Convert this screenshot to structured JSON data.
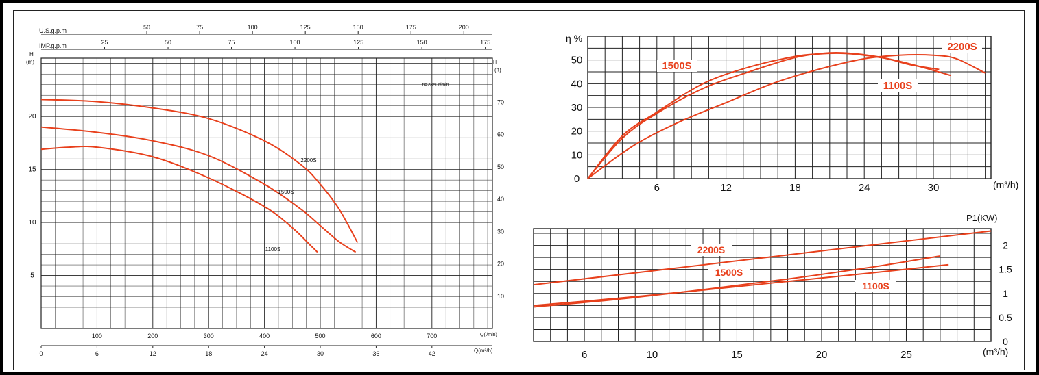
{
  "chart_data": [
    {
      "type": "line",
      "title": "",
      "annotation": "n=2850r/min",
      "top_axes": [
        {
          "label": "U.S.g.p.m",
          "ticks": [
            "50",
            "75",
            "100",
            "125",
            "150",
            "175",
            "200"
          ],
          "values": [
            50,
            75,
            100,
            125,
            150,
            175,
            200
          ]
        },
        {
          "label": "IMP.g.p.m",
          "ticks": [
            "25",
            "50",
            "75",
            "100",
            "125",
            "150",
            "175"
          ],
          "values": [
            25,
            50,
            75,
            100,
            125,
            150,
            175
          ]
        }
      ],
      "bottom_axes": [
        {
          "label": "Q(l/min)",
          "ticks": [
            "100",
            "200",
            "300",
            "400",
            "500",
            "600",
            "700"
          ],
          "values": [
            100,
            200,
            300,
            400,
            500,
            600,
            700
          ]
        },
        {
          "label": "Q(m³/h)",
          "ticks": [
            "0",
            "6",
            "12",
            "18",
            "24",
            "30",
            "36",
            "42"
          ],
          "values": [
            0,
            6,
            12,
            18,
            24,
            30,
            36,
            42
          ]
        }
      ],
      "ylabel_left": "H",
      "ylabel_left_unit": "(m)",
      "ylabel_right": "H",
      "ylabel_right_unit": "(ft)",
      "yticks_left": [
        "5",
        "10",
        "15",
        "20"
      ],
      "yticks_right": [
        "10",
        "20",
        "30",
        "40",
        "50",
        "60",
        "70"
      ],
      "xlim": [
        0,
        48.5
      ],
      "ylim": [
        0,
        25.5
      ],
      "grid": true,
      "series": [
        {
          "name": "2200S",
          "x": [
            0,
            6,
            12,
            18,
            24,
            28,
            30,
            32,
            34
          ],
          "y": [
            21.6,
            21.4,
            20.8,
            19.8,
            17.7,
            15.4,
            13.6,
            11.3,
            8.1
          ]
        },
        {
          "name": "1500S",
          "x": [
            0,
            6,
            12,
            18,
            24,
            28,
            30,
            32,
            33.8
          ],
          "y": [
            19.0,
            18.5,
            17.7,
            16.3,
            13.6,
            11.2,
            9.7,
            8.2,
            7.2
          ]
        },
        {
          "name": "1100S",
          "x": [
            0,
            3,
            6,
            12,
            18,
            24,
            27,
            29,
            29.7
          ],
          "y": [
            16.9,
            17.1,
            17.1,
            16.2,
            14.2,
            11.5,
            9.5,
            7.8,
            7.2
          ]
        }
      ]
    },
    {
      "type": "line",
      "title": "",
      "ylabel": "η %",
      "xlabel": "(m³/h)",
      "xticks": [
        "6",
        "12",
        "18",
        "24",
        "30"
      ],
      "yticks": [
        "0",
        "10",
        "20",
        "30",
        "40",
        "50"
      ],
      "xlim": [
        0,
        35
      ],
      "ylim": [
        0,
        60
      ],
      "grid": true,
      "series": [
        {
          "name": "1500S",
          "x": [
            0,
            3,
            6,
            10,
            14,
            18,
            20,
            22,
            24,
            26,
            28,
            30.5
          ],
          "y": [
            0,
            18,
            28,
            40,
            47,
            51.5,
            52.5,
            52.8,
            52,
            50.5,
            48,
            46
          ]
        },
        {
          "name": "1100S",
          "x": [
            0,
            3,
            6,
            10,
            14,
            18,
            21,
            23,
            25,
            27,
            29,
            31.5
          ],
          "y": [
            0,
            17,
            27.5,
            38,
            45,
            51,
            53,
            52.7,
            51.5,
            49.5,
            47,
            43.5
          ]
        },
        {
          "name": "2200S",
          "x": [
            0,
            4,
            8,
            12,
            16,
            20,
            24,
            27,
            30,
            32,
            34.5
          ],
          "y": [
            0,
            14,
            24,
            32,
            40,
            46,
            50.5,
            52,
            52,
            50.5,
            44.5
          ]
        }
      ]
    },
    {
      "type": "line",
      "title": "",
      "ylabel": "P1(KW)",
      "xlabel": "(m³/h)",
      "xticks": [
        "6",
        "10",
        "15",
        "20",
        "25"
      ],
      "yticks": [
        "0",
        "0.5",
        "1",
        "1.5",
        "2"
      ],
      "xlim": [
        3,
        30
      ],
      "ylim": [
        0,
        2.35
      ],
      "grid": true,
      "series": [
        {
          "name": "2200S",
          "x": [
            3,
            30
          ],
          "y": [
            1.18,
            2.3
          ]
        },
        {
          "name": "1500S",
          "x": [
            3,
            8,
            13,
            18,
            23,
            27
          ],
          "y": [
            0.72,
            0.88,
            1.08,
            1.3,
            1.55,
            1.78
          ]
        },
        {
          "name": "1100S",
          "x": [
            3,
            8,
            13,
            18,
            23,
            27.5
          ],
          "y": [
            0.75,
            0.9,
            1.07,
            1.25,
            1.43,
            1.6
          ]
        }
      ]
    }
  ]
}
